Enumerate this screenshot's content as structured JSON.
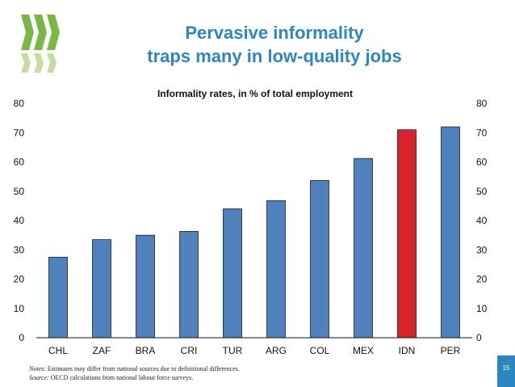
{
  "header": {
    "title_line1": "Pervasive informality",
    "title_line2": "traps many in low-quality jobs"
  },
  "logo": {
    "icon": "oecd-logo-icon",
    "color": "#7ab648"
  },
  "chart_data": {
    "type": "bar",
    "title": "Informality rates, in % of total employment",
    "xlabel": "",
    "ylabel": "",
    "categories": [
      "CHL",
      "ZAF",
      "BRA",
      "CRI",
      "TUR",
      "ARG",
      "COL",
      "MEX",
      "IDN",
      "PER"
    ],
    "values": [
      27.5,
      33.5,
      35,
      36.3,
      44,
      46.8,
      53.7,
      61.2,
      71,
      72
    ],
    "highlight": "IDN",
    "bar_color": "#4f81bd",
    "highlight_color": "#d9232a",
    "ylim": [
      0,
      80
    ],
    "yticks": [
      0,
      10,
      20,
      30,
      40,
      50,
      60,
      70,
      80
    ],
    "grid": false,
    "y_axis_both_sides": true
  },
  "notes": {
    "notes_label": "Notes:",
    "notes_text": "Estimates may differ from national sources due to definitional differences.",
    "source_label": "Source:",
    "source_text": "OECD calculations from national labour force surveys."
  },
  "page_number": "15"
}
